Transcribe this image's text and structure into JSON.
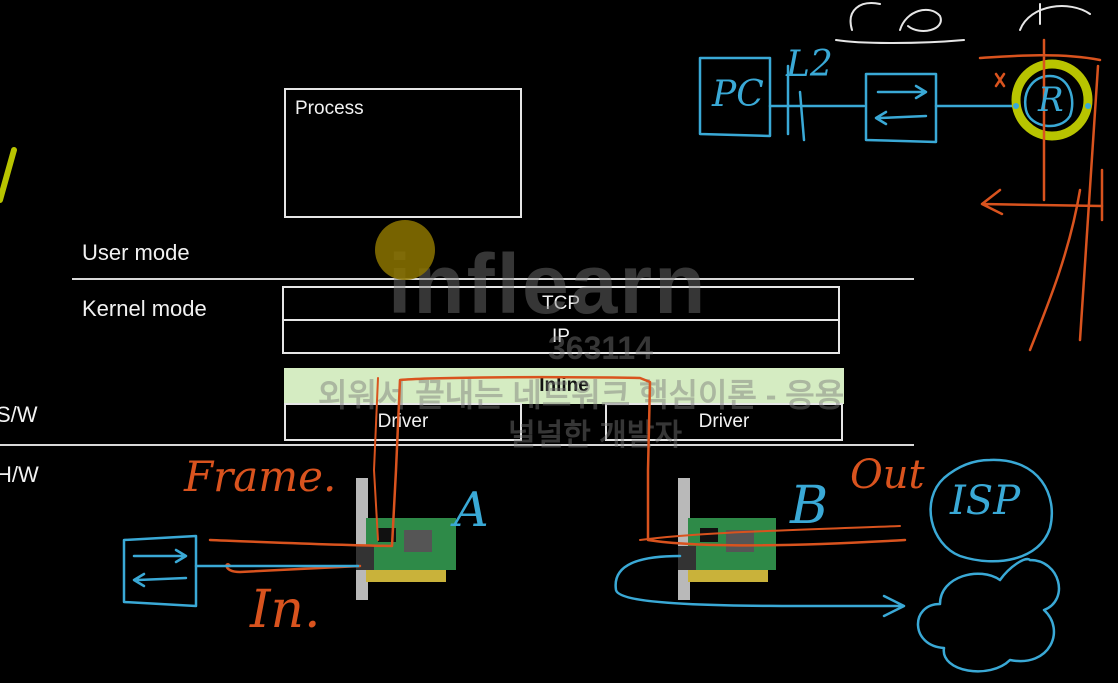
{
  "diagram": {
    "process_label": "Process",
    "user_mode_label": "User mode",
    "kernel_mode_label": "Kernel mode",
    "sw_label": "S/W",
    "hw_label": "H/W",
    "tcp_label": "TCP",
    "ip_label": "IP",
    "inline_label": "Inline",
    "driver_left_label": "Driver",
    "driver_right_label": "Driver"
  },
  "annotations": {
    "pc_label": "PC",
    "l2_label": "L2",
    "router_label": "R",
    "frame_label": "Frame.",
    "in_label": "In.",
    "nic_a_label": "A",
    "nic_b_label": "B",
    "out_label": "Out",
    "isp_label": "ISP"
  },
  "watermark": {
    "brand": "inflearn",
    "id": "363114",
    "line1": "외워서 끝내는 네트워크 핵심이론 - 응용",
    "line2": "널널한 개발자"
  },
  "colors": {
    "background": "#000000",
    "box_stroke": "#e6e6e6",
    "inline_fill": "#d5ecc2",
    "ink_orange": "#d9531e",
    "ink_cyan": "#3aa9d6",
    "ink_yellow": "#b8c400",
    "pointer": "#8c7400"
  }
}
